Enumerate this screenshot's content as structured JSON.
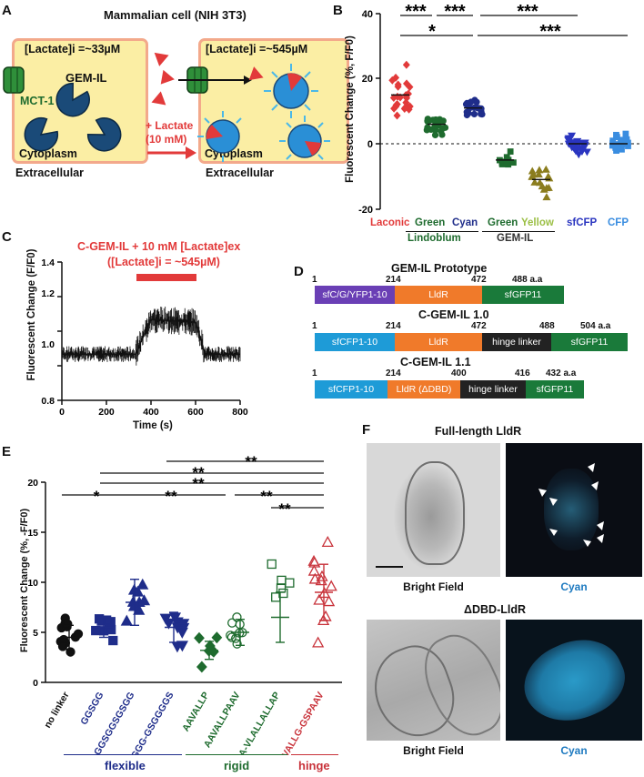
{
  "colors": {
    "red": "#e23a3a",
    "green": "#1e6b2e",
    "navy": "#1f2d8a",
    "blue": "#2a78c8",
    "yellowgreen": "#9bbf45",
    "olive": "#8b7d1e",
    "purple": "#6a3fb5",
    "orange": "#f07a2a",
    "darkgreen": "#1a7a3a",
    "cyanblue": "#1e9bd7",
    "black": "#222222"
  },
  "panel_a": {
    "label": "A",
    "title": "Mammalian cell (NIH 3T3)",
    "left_conc": "[Lactate]i =~33µM",
    "right_conc": "[Lactate]i =~545µM",
    "sensor": "GEM-IL",
    "transporter": "MCT-1",
    "treatment_line1": "+ Lactate",
    "treatment_line2": "(10 mM)",
    "cytoplasm": "Cytoplasm",
    "extracellular": "Extracellular"
  },
  "panel_b": {
    "label": "B",
    "ylabel": "Fluorescent Change (%, F/F0)",
    "ticks": [
      "40",
      "20",
      "0",
      "-20"
    ],
    "groups": [
      {
        "name": "Laconic",
        "color": "#e23a3a"
      },
      {
        "name": "Green",
        "color": "#1e6b2e"
      },
      {
        "name": "Cyan",
        "color": "#1f2d8a"
      },
      {
        "name": "Green",
        "color": "#1e6b2e"
      },
      {
        "name": "Yellow",
        "color": "#9bbf45"
      },
      {
        "name": "sfCFP",
        "color": "#2a35c0"
      },
      {
        "name": "CFP",
        "color": "#3a8de0"
      }
    ],
    "sub_lindoblum": "Lindoblum",
    "sub_gemil": "GEM-IL",
    "sig": [
      "***",
      "***",
      "***",
      "*",
      "***"
    ]
  },
  "panel_c": {
    "label": "C",
    "annotation_line1": "C-GEM-IL + 10 mM [Lactate]ex",
    "annotation_line2": "([Lactate]i = ~545µM)",
    "ylabel": "Fluorescent Change (F/F0)",
    "xlabel": "Time (s)",
    "yticks": [
      "1.4",
      "1.2",
      "1.0",
      "0.8"
    ],
    "xticks": [
      "0",
      "200",
      "400",
      "600",
      "800"
    ]
  },
  "panel_d": {
    "label": "D",
    "constructs": [
      {
        "name": "GEM-IL Prototype",
        "nums": [
          "1",
          "214",
          "472",
          "488 a.a"
        ],
        "domains": [
          "sfC/G/YFP1-10",
          "LldR",
          "sfGFP11"
        ]
      },
      {
        "name": "C-GEM-IL 1.0",
        "nums": [
          "1",
          "214",
          "472",
          "488",
          "504 a.a"
        ],
        "domains": [
          "sfCFP1-10",
          "LldR",
          "hinge linker",
          "sfGFP11"
        ]
      },
      {
        "name": "C-GEM-IL 1.1",
        "nums": [
          "1",
          "214",
          "400",
          "416",
          "432 a.a"
        ],
        "domains": [
          "sfCFP1-10",
          "LldR (ΔDBD)",
          "hinge linker",
          "sfGFP11"
        ]
      }
    ]
  },
  "panel_e": {
    "label": "E",
    "ylabel": "Fluorescent Change (%, -F/F0)",
    "yticks": [
      "20",
      "15",
      "10",
      "5",
      "0"
    ],
    "xticks": [
      "no linker",
      "GGSGG",
      "GGSGGSGSGG",
      "GGGSGGGG-GSGGGGS",
      "AAVALLP",
      "AAVALLPAAV",
      "AAVALLPAAA-VLALLALLAP",
      "AAVALLG-GSPAAV"
    ],
    "categories": [
      "flexible",
      "rigid",
      "hinge"
    ],
    "sig": [
      "**",
      "**",
      "**",
      "*",
      "**",
      "**",
      "**"
    ]
  },
  "panel_f": {
    "label": "F",
    "title_top": "Full-length LldR",
    "title_bottom": "ΔDBD-LldR",
    "bright_field": "Bright Field",
    "cyan": "Cyan"
  }
}
